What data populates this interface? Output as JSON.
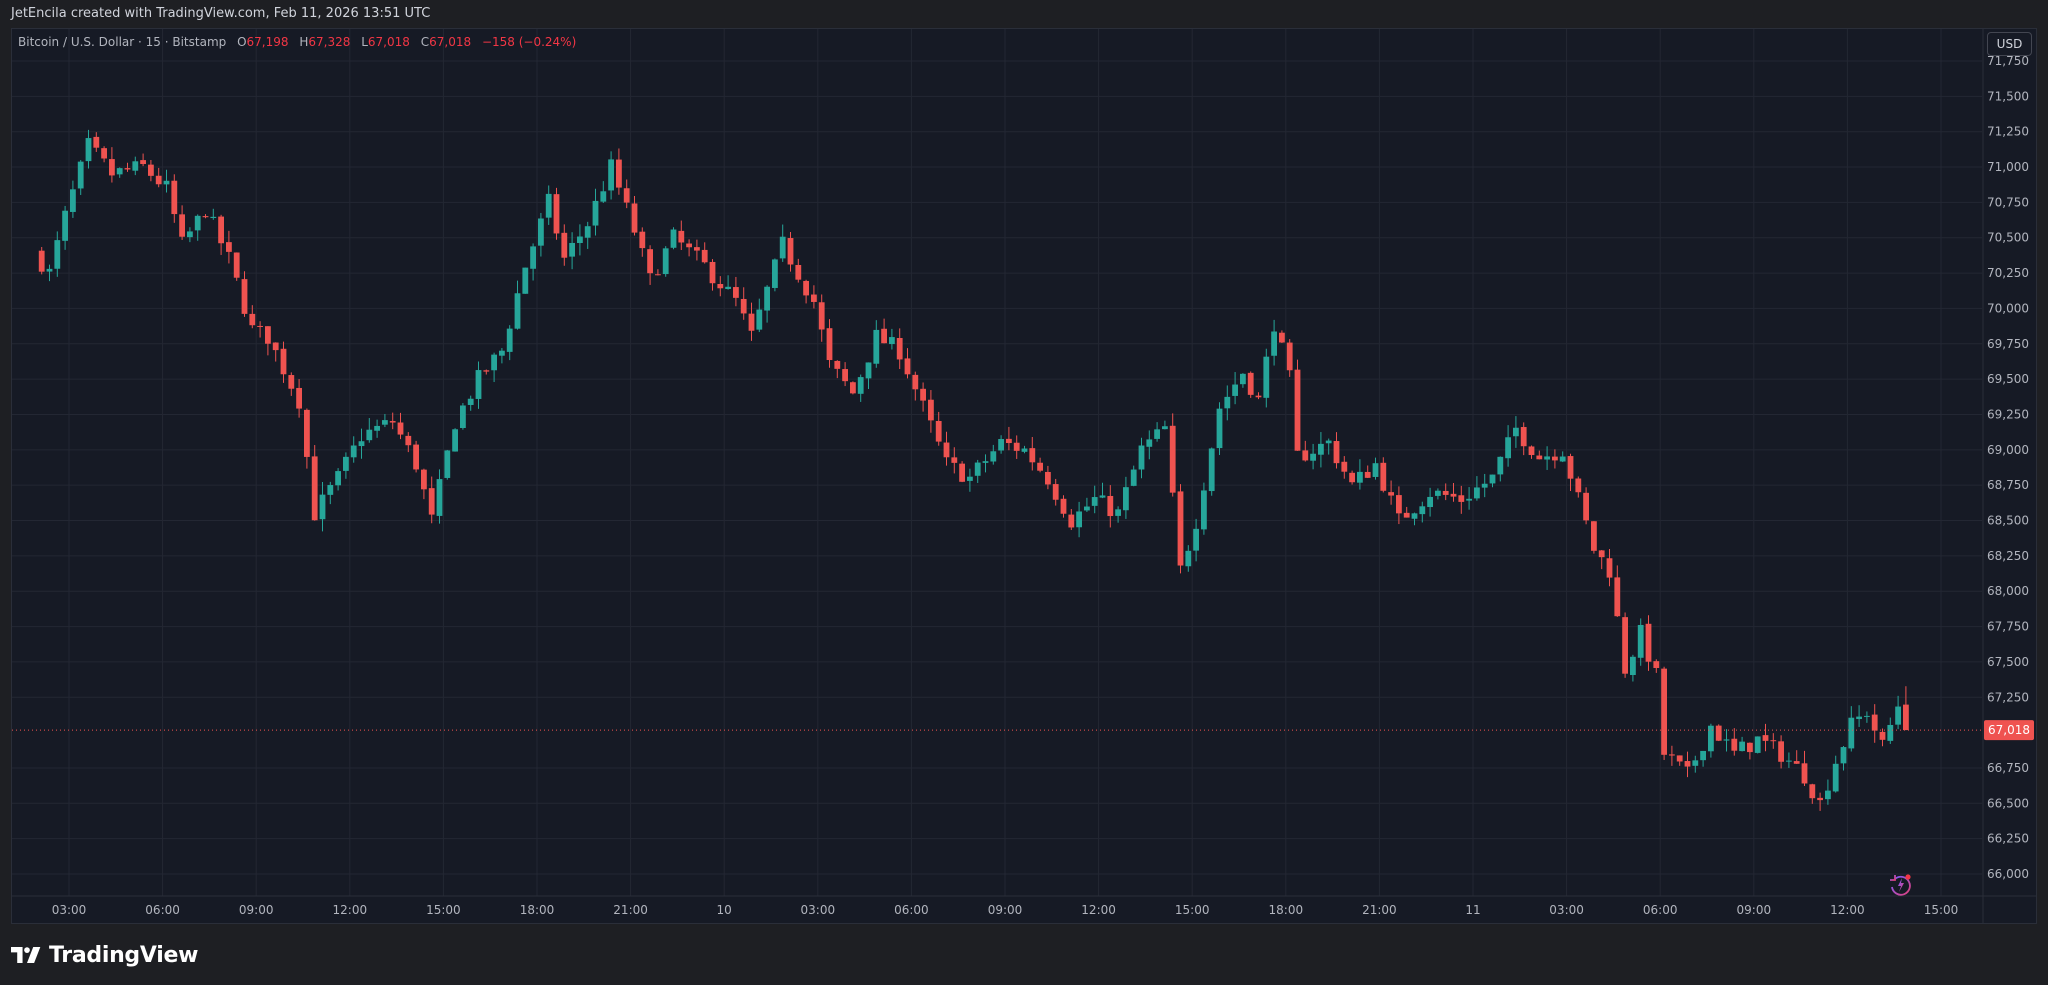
{
  "header": {
    "attribution": "JetEncila created with TradingView.com, Feb 11, 2026 13:51 UTC"
  },
  "legend": {
    "symbol": "Bitcoin / U.S. Dollar · 15 · Bitstamp",
    "open_label": "O",
    "open": "67,198",
    "high_label": "H",
    "high": "67,328",
    "low_label": "L",
    "low": "67,018",
    "close_label": "C",
    "close": "67,018",
    "change": "−158 (−0.24%)"
  },
  "currency_button": "USD",
  "last_price_label": "67,018",
  "footer": {
    "brand": "TradingView"
  },
  "icons": {
    "logo": "tradingview-logo-icon",
    "replay": "replay-lightning-icon"
  },
  "colors": {
    "up": "#26a69a",
    "down": "#ef5350",
    "background": "#161a25",
    "grid": "#232733",
    "last_price": "#ef5350"
  },
  "chart_data": {
    "type": "candlestick",
    "interval_minutes": 15,
    "x_range": [
      "2026-02-09T02:00",
      "2026-02-11T15:30"
    ],
    "ylim": [
      65900,
      71850
    ],
    "y_ticks": [
      71750,
      71500,
      71250,
      71000,
      70750,
      70500,
      70250,
      70000,
      69750,
      69500,
      69250,
      69000,
      68750,
      68500,
      68250,
      68000,
      67750,
      67500,
      67250,
      66750,
      66500,
      66250,
      66000
    ],
    "y_tick_labels": [
      "71,750",
      "71,500",
      "71,250",
      "71,000",
      "70,750",
      "70,500",
      "70,250",
      "70,000",
      "69,750",
      "69,500",
      "69,250",
      "69,000",
      "68,750",
      "68,500",
      "68,250",
      "68,000",
      "67,750",
      "67,500",
      "67,250",
      "66,750",
      "66,500",
      "66,250",
      "66,000"
    ],
    "x_ticks": [
      {
        "t": "2026-02-09T03:00",
        "label": "03:00"
      },
      {
        "t": "2026-02-09T06:00",
        "label": "06:00"
      },
      {
        "t": "2026-02-09T09:00",
        "label": "09:00"
      },
      {
        "t": "2026-02-09T12:00",
        "label": "12:00"
      },
      {
        "t": "2026-02-09T15:00",
        "label": "15:00"
      },
      {
        "t": "2026-02-09T18:00",
        "label": "18:00"
      },
      {
        "t": "2026-02-09T21:00",
        "label": "21:00"
      },
      {
        "t": "2026-02-10T00:00",
        "label": "10"
      },
      {
        "t": "2026-02-10T03:00",
        "label": "03:00"
      },
      {
        "t": "2026-02-10T06:00",
        "label": "06:00"
      },
      {
        "t": "2026-02-10T09:00",
        "label": "09:00"
      },
      {
        "t": "2026-02-10T12:00",
        "label": "12:00"
      },
      {
        "t": "2026-02-10T15:00",
        "label": "15:00"
      },
      {
        "t": "2026-02-10T18:00",
        "label": "18:00"
      },
      {
        "t": "2026-02-10T21:00",
        "label": "21:00"
      },
      {
        "t": "2026-02-11T00:00",
        "label": "11"
      },
      {
        "t": "2026-02-11T03:00",
        "label": "03:00"
      },
      {
        "t": "2026-02-11T06:00",
        "label": "06:00"
      },
      {
        "t": "2026-02-11T09:00",
        "label": "09:00"
      },
      {
        "t": "2026-02-11T12:00",
        "label": "12:00"
      },
      {
        "t": "2026-02-11T15:00",
        "label": "15:00"
      }
    ],
    "last_price": 67018,
    "price_path": [
      {
        "t": "2026-02-09T02:00",
        "p": 70400
      },
      {
        "t": "2026-02-09T02:30",
        "p": 70250
      },
      {
        "t": "2026-02-09T03:00",
        "p": 70650
      },
      {
        "t": "2026-02-09T03:45",
        "p": 71150
      },
      {
        "t": "2026-02-09T04:30",
        "p": 70950
      },
      {
        "t": "2026-02-09T05:30",
        "p": 71000
      },
      {
        "t": "2026-02-09T06:15",
        "p": 70850
      },
      {
        "t": "2026-02-09T06:45",
        "p": 70450
      },
      {
        "t": "2026-02-09T07:30",
        "p": 70700
      },
      {
        "t": "2026-02-09T08:15",
        "p": 70350
      },
      {
        "t": "2026-02-09T09:00",
        "p": 69850
      },
      {
        "t": "2026-02-09T09:30",
        "p": 69800
      },
      {
        "t": "2026-02-09T10:30",
        "p": 69350
      },
      {
        "t": "2026-02-09T11:00",
        "p": 68550
      },
      {
        "t": "2026-02-09T11:45",
        "p": 68800
      },
      {
        "t": "2026-02-09T12:30",
        "p": 69100
      },
      {
        "t": "2026-02-09T13:30",
        "p": 69200
      },
      {
        "t": "2026-02-09T14:15",
        "p": 68900
      },
      {
        "t": "2026-02-09T14:45",
        "p": 68500
      },
      {
        "t": "2026-02-09T15:30",
        "p": 69200
      },
      {
        "t": "2026-02-09T16:15",
        "p": 69500
      },
      {
        "t": "2026-02-09T17:00",
        "p": 69700
      },
      {
        "t": "2026-02-09T17:45",
        "p": 70300
      },
      {
        "t": "2026-02-09T18:30",
        "p": 70750
      },
      {
        "t": "2026-02-09T19:00",
        "p": 70350
      },
      {
        "t": "2026-02-09T19:45",
        "p": 70600
      },
      {
        "t": "2026-02-09T20:30",
        "p": 71000
      },
      {
        "t": "2026-02-09T21:15",
        "p": 70550
      },
      {
        "t": "2026-02-09T21:45",
        "p": 70200
      },
      {
        "t": "2026-02-09T22:30",
        "p": 70500
      },
      {
        "t": "2026-02-09T23:30",
        "p": 70300
      },
      {
        "t": "2026-02-10T00:30",
        "p": 70050
      },
      {
        "t": "2026-02-10T01:00",
        "p": 69800
      },
      {
        "t": "2026-02-10T02:00",
        "p": 70450
      },
      {
        "t": "2026-02-10T03:00",
        "p": 70050
      },
      {
        "t": "2026-02-10T03:30",
        "p": 69600
      },
      {
        "t": "2026-02-10T04:15",
        "p": 69400
      },
      {
        "t": "2026-02-10T05:00",
        "p": 69800
      },
      {
        "t": "2026-02-10T05:45",
        "p": 69700
      },
      {
        "t": "2026-02-10T06:30",
        "p": 69300
      },
      {
        "t": "2026-02-10T07:15",
        "p": 68900
      },
      {
        "t": "2026-02-10T08:00",
        "p": 68800
      },
      {
        "t": "2026-02-10T09:00",
        "p": 69050
      },
      {
        "t": "2026-02-10T09:45",
        "p": 69000
      },
      {
        "t": "2026-02-10T10:30",
        "p": 68800
      },
      {
        "t": "2026-02-10T11:15",
        "p": 68500
      },
      {
        "t": "2026-02-10T12:00",
        "p": 68650
      },
      {
        "t": "2026-02-10T12:45",
        "p": 68550
      },
      {
        "t": "2026-02-10T13:30",
        "p": 69000
      },
      {
        "t": "2026-02-10T14:15",
        "p": 69150
      },
      {
        "t": "2026-02-10T14:45",
        "p": 68150
      },
      {
        "t": "2026-02-10T15:15",
        "p": 68500
      },
      {
        "t": "2026-02-10T16:00",
        "p": 69300
      },
      {
        "t": "2026-02-10T16:45",
        "p": 69550
      },
      {
        "t": "2026-02-10T17:15",
        "p": 69350
      },
      {
        "t": "2026-02-10T17:45",
        "p": 69900
      },
      {
        "t": "2026-02-10T18:15",
        "p": 69500
      },
      {
        "t": "2026-02-10T18:30",
        "p": 68950
      },
      {
        "t": "2026-02-10T19:30",
        "p": 69050
      },
      {
        "t": "2026-02-10T20:15",
        "p": 68750
      },
      {
        "t": "2026-02-10T21:00",
        "p": 68900
      },
      {
        "t": "2026-02-10T21:45",
        "p": 68500
      },
      {
        "t": "2026-02-10T22:45",
        "p": 68700
      },
      {
        "t": "2026-02-10T23:45",
        "p": 68650
      },
      {
        "t": "2026-02-11T00:45",
        "p": 68800
      },
      {
        "t": "2026-02-11T01:30",
        "p": 69150
      },
      {
        "t": "2026-02-11T02:15",
        "p": 68950
      },
      {
        "t": "2026-02-11T03:00",
        "p": 69000
      },
      {
        "t": "2026-02-11T03:30",
        "p": 68650
      },
      {
        "t": "2026-02-11T04:00",
        "p": 68300
      },
      {
        "t": "2026-02-11T04:30",
        "p": 68150
      },
      {
        "t": "2026-02-11T05:00",
        "p": 67450
      },
      {
        "t": "2026-02-11T05:30",
        "p": 67700
      },
      {
        "t": "2026-02-11T06:00",
        "p": 67400
      },
      {
        "t": "2026-02-11T06:15",
        "p": 66850
      },
      {
        "t": "2026-02-11T07:00",
        "p": 66700
      },
      {
        "t": "2026-02-11T07:45",
        "p": 67050
      },
      {
        "t": "2026-02-11T08:30",
        "p": 66850
      },
      {
        "t": "2026-02-11T09:15",
        "p": 66950
      },
      {
        "t": "2026-02-11T10:00",
        "p": 66850
      },
      {
        "t": "2026-02-11T10:45",
        "p": 66700
      },
      {
        "t": "2026-02-11T11:15",
        "p": 66500
      },
      {
        "t": "2026-02-11T11:45",
        "p": 66800
      },
      {
        "t": "2026-02-11T12:15",
        "p": 67050
      },
      {
        "t": "2026-02-11T12:45",
        "p": 67150
      },
      {
        "t": "2026-02-11T13:15",
        "p": 66900
      },
      {
        "t": "2026-02-11T13:45",
        "p": 67198
      }
    ]
  }
}
